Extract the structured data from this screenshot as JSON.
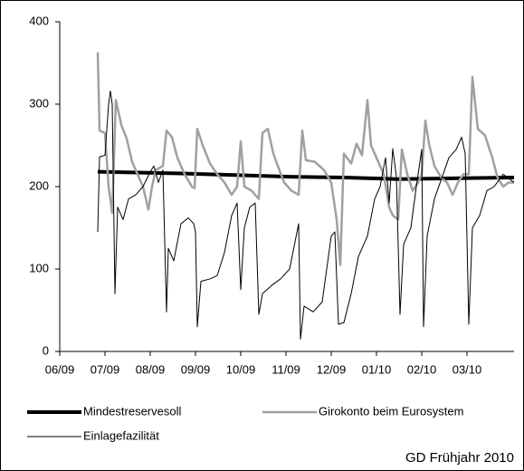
{
  "chart_data": {
    "type": "line",
    "footnote": "GD Frühjahr 2010",
    "legend": "bottom",
    "grid": false,
    "xlim": [
      0,
      10.04
    ],
    "xticks": [
      {
        "value": 0,
        "label": "06/09"
      },
      {
        "value": 1,
        "label": "07/09"
      },
      {
        "value": 2,
        "label": "08/09"
      },
      {
        "value": 3,
        "label": "09/09"
      },
      {
        "value": 4,
        "label": "10/09"
      },
      {
        "value": 5,
        "label": "11/09"
      },
      {
        "value": 6,
        "label": "12/09"
      },
      {
        "value": 7,
        "label": "01/10"
      },
      {
        "value": 8,
        "label": "02/10"
      },
      {
        "value": 9,
        "label": "03/10"
      }
    ],
    "ylim": [
      0,
      400
    ],
    "yticks": [
      0,
      100,
      200,
      300,
      400
    ],
    "series": [
      {
        "name": "Mindestreservesoll",
        "color": "#000000",
        "line_width": 4,
        "x": [
          0.84,
          2.68,
          3.88,
          5.08,
          6.28,
          7.48,
          8.68,
          10.04
        ],
        "values": [
          218,
          216,
          214,
          212,
          211,
          209,
          210,
          211
        ]
      },
      {
        "name": "Girokonto beim Eurosystem",
        "color": "#a0a0a0",
        "line_width": 2.5,
        "x": [
          0.84,
          0.88,
          1.0,
          1.08,
          1.16,
          1.24,
          1.36,
          1.48,
          1.6,
          1.72,
          1.84,
          1.96,
          2.04,
          2.12,
          2.28,
          2.36,
          2.48,
          2.6,
          2.76,
          2.92,
          2.98,
          3.04,
          3.16,
          3.32,
          3.48,
          3.64,
          3.8,
          3.92,
          4.0,
          4.08,
          4.24,
          4.4,
          4.48,
          4.6,
          4.72,
          4.84,
          4.96,
          5.12,
          5.28,
          5.36,
          5.44,
          5.64,
          5.84,
          6.0,
          6.12,
          6.2,
          6.28,
          6.44,
          6.56,
          6.68,
          6.8,
          6.88,
          7.04,
          7.16,
          7.28,
          7.36,
          7.48,
          7.56,
          7.68,
          7.8,
          7.92,
          8.0,
          8.08,
          8.16,
          8.28,
          8.44,
          8.56,
          8.68,
          8.8,
          8.92,
          9.04,
          9.12,
          9.24,
          9.4,
          9.56,
          9.68,
          9.8,
          9.92,
          10.04
        ],
        "values": [
          363,
          268,
          265,
          200,
          168,
          305,
          275,
          258,
          230,
          215,
          200,
          172,
          200,
          220,
          225,
          268,
          260,
          235,
          215,
          200,
          198,
          270,
          250,
          228,
          215,
          205,
          190,
          200,
          255,
          200,
          195,
          185,
          265,
          270,
          240,
          222,
          205,
          195,
          190,
          268,
          232,
          230,
          220,
          205,
          160,
          105,
          240,
          228,
          252,
          238,
          305,
          250,
          230,
          215,
          175,
          165,
          160,
          245,
          215,
          195,
          205,
          215,
          280,
          252,
          225,
          210,
          205,
          190,
          205,
          215,
          215,
          333,
          270,
          262,
          235,
          210,
          200,
          205,
          205
        ]
      },
      {
        "name": "Einlagefazilität",
        "color": "#000000",
        "line_width": 1,
        "x": [
          0.84,
          0.88,
          1.0,
          1.08,
          1.12,
          1.16,
          1.22,
          1.28,
          1.4,
          1.52,
          1.68,
          1.84,
          2.0,
          2.08,
          2.18,
          2.28,
          2.36,
          2.4,
          2.52,
          2.68,
          2.84,
          2.96,
          3.0,
          3.04,
          3.12,
          3.32,
          3.48,
          3.64,
          3.8,
          3.92,
          4.0,
          4.08,
          4.2,
          4.32,
          4.4,
          4.48,
          4.68,
          4.88,
          5.08,
          5.28,
          5.32,
          5.4,
          5.6,
          5.8,
          6.0,
          6.08,
          6.16,
          6.28,
          6.44,
          6.6,
          6.8,
          6.96,
          7.08,
          7.2,
          7.28,
          7.36,
          7.44,
          7.52,
          7.6,
          7.76,
          7.88,
          8.0,
          8.04,
          8.12,
          8.28,
          8.44,
          8.6,
          8.76,
          8.88,
          8.96,
          9.04,
          9.12,
          9.28,
          9.44,
          9.6,
          9.8,
          10.04
        ],
        "values": [
          145,
          236,
          238,
          300,
          316,
          300,
          70,
          175,
          160,
          185,
          190,
          200,
          218,
          225,
          205,
          220,
          48,
          125,
          110,
          155,
          162,
          155,
          145,
          30,
          85,
          88,
          92,
          120,
          165,
          180,
          75,
          150,
          175,
          180,
          45,
          70,
          80,
          88,
          100,
          155,
          15,
          55,
          48,
          60,
          140,
          145,
          33,
          35,
          70,
          115,
          140,
          185,
          200,
          235,
          180,
          246,
          212,
          45,
          130,
          150,
          200,
          245,
          30,
          140,
          185,
          210,
          235,
          245,
          260,
          240,
          33,
          150,
          165,
          195,
          200,
          215,
          205
        ]
      }
    ]
  }
}
